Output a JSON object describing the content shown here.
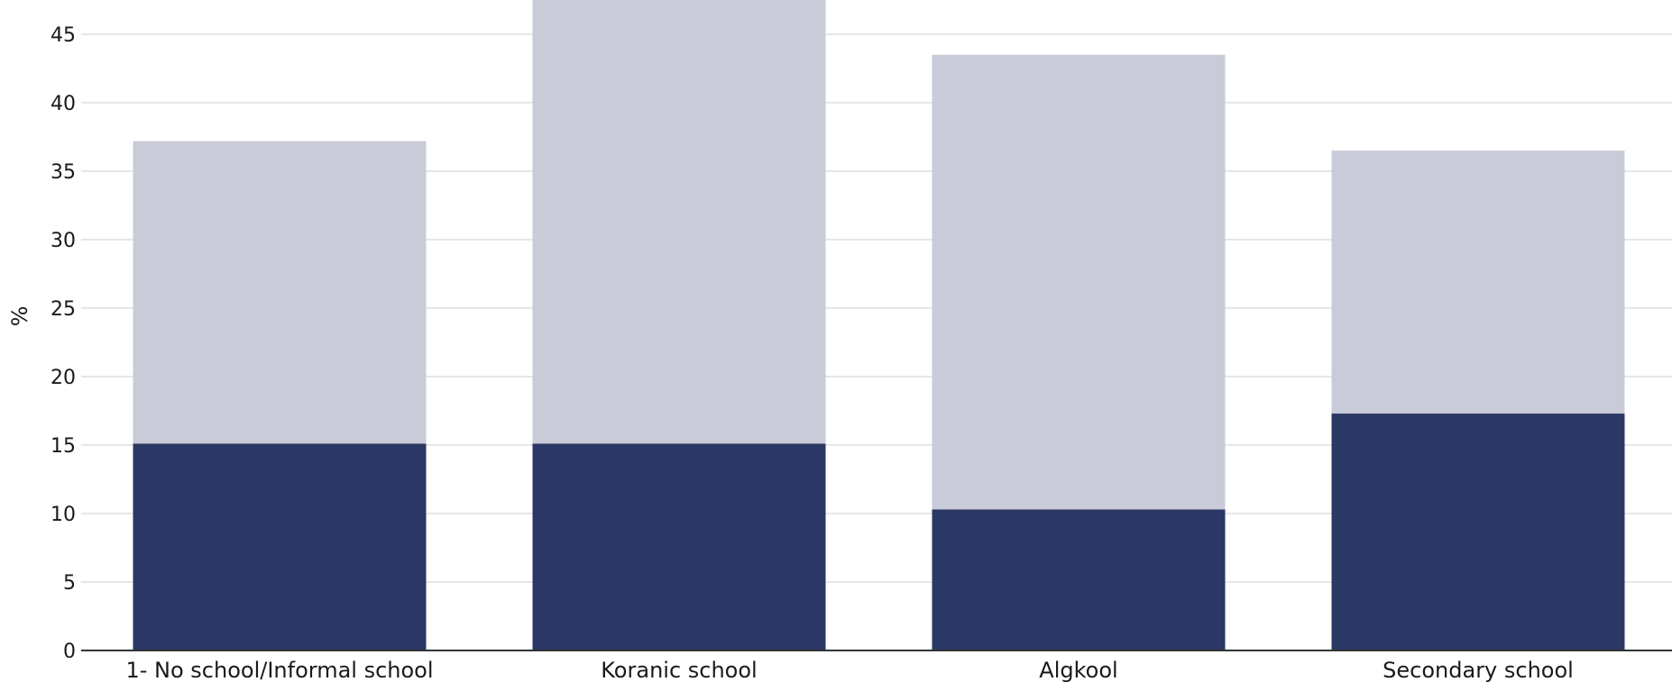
{
  "chart_data": {
    "type": "bar",
    "stacked": true,
    "categories": [
      "1- No school/Informal school",
      "Koranic school",
      "Algkool",
      "Secondary school"
    ],
    "series": [
      {
        "color": "#2b3865",
        "values": [
          15.1,
          15.1,
          10.3,
          17.3
        ]
      },
      {
        "color": "#cacbd8",
        "values": [
          22.1,
          32.4,
          33.2,
          19.2
        ]
      }
    ],
    "xlabel": "",
    "ylabel": "%",
    "ylim": [
      0,
      47.5
    ],
    "yticks": [
      0,
      5,
      10,
      15,
      20,
      25,
      30,
      35,
      40,
      45
    ],
    "grid": true,
    "legend": "none"
  }
}
